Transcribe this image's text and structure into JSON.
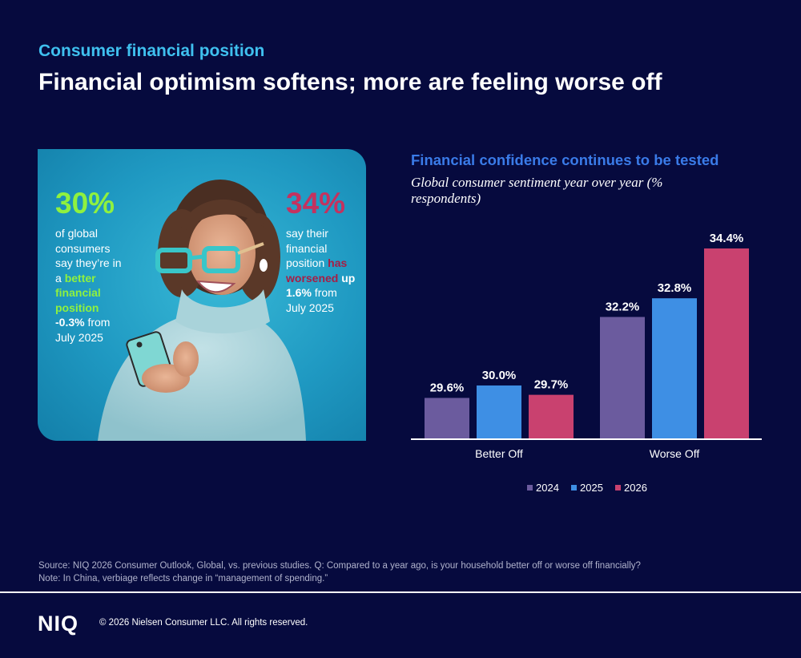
{
  "header": {
    "kicker": "Consumer financial position",
    "headline": "Financial optimism softens; more are feeling worse off"
  },
  "card": {
    "left_stat": {
      "value": "30%",
      "text_1": "of global consumers say they’re in a ",
      "highlight": "better financial position",
      "change": " -0.3%",
      "text_2": " from July 2025"
    },
    "right_stat": {
      "value": "34%",
      "text_1": "say their financial position ",
      "highlight": "has worsened",
      "change": " up 1.6%",
      "text_2": " from July 2025"
    }
  },
  "chart_data": {
    "type": "bar",
    "title": "Financial confidence continues to be tested",
    "subtitle": "Global consumer sentiment year over year (% respondents)",
    "categories": [
      "Better Off",
      "Worse Off"
    ],
    "series": [
      {
        "name": "2024",
        "color": "#6b5b9e",
        "values": [
          29.6,
          32.2
        ]
      },
      {
        "name": "2025",
        "color": "#3e8fe4",
        "values": [
          30.0,
          32.8
        ]
      },
      {
        "name": "2026",
        "color": "#c9416f",
        "values": [
          29.7,
          34.4
        ]
      }
    ],
    "value_labels": [
      [
        "29.6%",
        "32.2%"
      ],
      [
        "30.0%",
        "32.8%"
      ],
      [
        "29.7%",
        "34.4%"
      ]
    ],
    "ylim": [
      28.3,
      34.4
    ],
    "legend_position": "bottom",
    "grid": false
  },
  "footer": {
    "source": "Source: NIQ 2026 Consumer Outlook, Global, vs. previous studies. Q: Compared to a year ago, is your household better off or worse off financially?",
    "note": "Note: In China, verbiage reflects change in “management of spending.”",
    "logo": "NIQ",
    "copyright": "© 2026 Nielsen Consumer LLC. All rights reserved."
  },
  "colors": {
    "background": "#060a3e",
    "kicker": "#3fc0ef",
    "chart_title": "#3a7be8",
    "green_highlight": "#8ff13f",
    "red_highlight": "#c4325f"
  }
}
